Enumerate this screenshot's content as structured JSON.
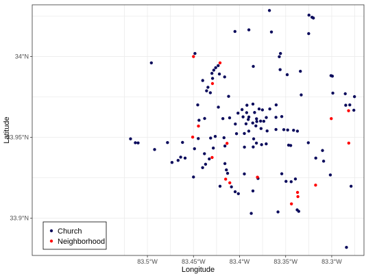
{
  "chart_data": {
    "type": "scatter",
    "xlabel": "Longitude",
    "ylabel": "Latitude",
    "xlim": [
      -83.625,
      -83.265
    ],
    "ylim": [
      33.877,
      34.032
    ],
    "x_ticks": [
      {
        "value": -83.5,
        "label": "83.5°W"
      },
      {
        "value": -83.45,
        "label": "83.45°W"
      },
      {
        "value": -83.4,
        "label": "83.4°W"
      },
      {
        "value": -83.35,
        "label": "83.35°W"
      },
      {
        "value": -83.3,
        "label": "83.3°W"
      }
    ],
    "y_ticks": [
      {
        "value": 33.9,
        "label": "33.9°N"
      },
      {
        "value": 33.95,
        "label": "33.95°N"
      },
      {
        "value": 34.0,
        "label": "34°N"
      }
    ],
    "grid": true,
    "legend_position": "bottom-left",
    "series": [
      {
        "name": "Church",
        "color": "#0b0b5c",
        "points": [
          [
            -83.3676,
            34.0285
          ],
          [
            -83.3247,
            34.0256
          ],
          [
            -83.3214,
            34.0243
          ],
          [
            -83.3199,
            34.0238
          ],
          [
            -83.3899,
            34.0165
          ],
          [
            -83.405,
            34.0155
          ],
          [
            -83.3654,
            34.0152
          ],
          [
            -83.325,
            34.0142
          ],
          [
            -83.4484,
            34.0019
          ],
          [
            -83.3556,
            34.0019
          ],
          [
            -83.3569,
            33.9999
          ],
          [
            -83.4957,
            33.9961
          ],
          [
            -83.4232,
            33.9944
          ],
          [
            -83.3851,
            33.9939
          ],
          [
            -83.4259,
            33.9931
          ],
          [
            -83.356,
            33.9919
          ],
          [
            -83.428,
            33.9916
          ],
          [
            -83.334,
            33.9909
          ],
          [
            -83.43,
            33.9896
          ],
          [
            -83.4219,
            33.9892
          ],
          [
            -83.3483,
            33.9888
          ],
          [
            -83.3008,
            33.9882
          ],
          [
            -83.2993,
            33.9879
          ],
          [
            -83.4162,
            33.9874
          ],
          [
            -83.4293,
            33.9865
          ],
          [
            -83.44,
            33.9852
          ],
          [
            -83.4343,
            33.981
          ],
          [
            -83.4358,
            33.9788
          ],
          [
            -83.4317,
            33.9776
          ],
          [
            -83.2988,
            33.9774
          ],
          [
            -83.3331,
            33.9763
          ],
          [
            -83.2853,
            33.977
          ],
          [
            -83.2753,
            33.9752
          ],
          [
            -83.4119,
            33.9754
          ],
          [
            -83.3855,
            33.9706
          ],
          [
            -83.4454,
            33.9701
          ],
          [
            -83.423,
            33.9687
          ],
          [
            -83.392,
            33.9699
          ],
          [
            -83.3603,
            33.9701
          ],
          [
            -83.2848,
            33.9699
          ],
          [
            -83.2804,
            33.9701
          ],
          [
            -83.276,
            33.9668
          ],
          [
            -83.3973,
            33.9672
          ],
          [
            -83.3788,
            33.9676
          ],
          [
            -83.3752,
            33.967
          ],
          [
            -83.3672,
            33.9676
          ],
          [
            -83.3837,
            33.9654
          ],
          [
            -83.3923,
            33.9653
          ],
          [
            -83.4017,
            33.965
          ],
          [
            -83.3899,
            33.9626
          ],
          [
            -83.3962,
            33.9627
          ],
          [
            -83.3906,
            33.9611
          ],
          [
            -83.3816,
            33.9615
          ],
          [
            -83.371,
            33.9623
          ],
          [
            -83.3605,
            33.9624
          ],
          [
            -83.3542,
            33.9629
          ],
          [
            -83.3813,
            33.9598
          ],
          [
            -83.3772,
            33.9601
          ],
          [
            -83.3737,
            33.96
          ],
          [
            -83.3857,
            33.9589
          ],
          [
            -83.393,
            33.9584
          ],
          [
            -83.4046,
            33.9583
          ],
          [
            -83.4108,
            33.9621
          ],
          [
            -83.4181,
            33.9616
          ],
          [
            -83.4379,
            33.9617
          ],
          [
            -83.444,
            33.9606
          ],
          [
            -83.3823,
            33.9571
          ],
          [
            -83.3767,
            33.9555
          ],
          [
            -83.3701,
            33.954
          ],
          [
            -83.3605,
            33.9549
          ],
          [
            -83.352,
            33.9548
          ],
          [
            -83.3478,
            33.9546
          ],
          [
            -83.3414,
            33.9544
          ],
          [
            -83.3372,
            33.9539
          ],
          [
            -83.39,
            33.9539
          ],
          [
            -83.3948,
            33.9524
          ],
          [
            -83.4033,
            33.9523
          ],
          [
            -83.3847,
            33.9491
          ],
          [
            -83.4169,
            33.9498
          ],
          [
            -83.4264,
            33.9506
          ],
          [
            -83.4314,
            33.9496
          ],
          [
            -83.4448,
            33.9493
          ],
          [
            -83.5183,
            33.9491
          ],
          [
            -83.5131,
            33.9467
          ],
          [
            -83.5101,
            33.9466
          ],
          [
            -83.4782,
            33.9468
          ],
          [
            -83.4619,
            33.9469
          ],
          [
            -83.4922,
            33.9425
          ],
          [
            -83.4489,
            33.943
          ],
          [
            -83.4381,
            33.9399
          ],
          [
            -83.4285,
            33.9434
          ],
          [
            -83.4159,
            33.9447
          ],
          [
            -83.3947,
            33.944
          ],
          [
            -83.3852,
            33.9441
          ],
          [
            -83.3817,
            33.9465
          ],
          [
            -83.3761,
            33.9455
          ],
          [
            -83.3711,
            33.946
          ],
          [
            -83.3468,
            33.9452
          ],
          [
            -83.3445,
            33.945
          ],
          [
            -83.3254,
            33.9467
          ],
          [
            -83.31,
            33.9419
          ],
          [
            -83.3173,
            33.9372
          ],
          [
            -83.3088,
            33.9353
          ],
          [
            -83.4639,
            33.9378
          ],
          [
            -83.4667,
            33.9358
          ],
          [
            -83.4733,
            33.9345
          ],
          [
            -83.4591,
            33.9372
          ],
          [
            -83.4329,
            33.9367
          ],
          [
            -83.4369,
            33.9334
          ],
          [
            -83.4401,
            33.9313
          ],
          [
            -83.4159,
            33.9338
          ],
          [
            -83.413,
            33.9278
          ],
          [
            -83.4143,
            33.9299
          ],
          [
            -83.45,
            33.9255
          ],
          [
            -83.3948,
            33.9274
          ],
          [
            -83.38,
            33.9246
          ],
          [
            -83.3542,
            33.9275
          ],
          [
            -83.3496,
            33.9228
          ],
          [
            -83.344,
            33.9226
          ],
          [
            -83.3394,
            33.9243
          ],
          [
            -83.3015,
            33.9268
          ],
          [
            -83.4212,
            33.9198
          ],
          [
            -83.4088,
            33.9194
          ],
          [
            -83.4048,
            33.9164
          ],
          [
            -83.4013,
            33.9152
          ],
          [
            -83.3855,
            33.9169
          ],
          [
            -83.279,
            33.9198
          ],
          [
            -83.3583,
            33.9039
          ],
          [
            -83.3873,
            33.903
          ],
          [
            -83.3375,
            33.9052
          ],
          [
            -83.3358,
            33.9043
          ],
          [
            -83.284,
            33.882
          ]
        ]
      },
      {
        "name": "Neighborhood",
        "color": "#ff0000",
        "points": [
          [
            -83.45,
            34.0
          ],
          [
            -83.4212,
            33.9961
          ],
          [
            -83.4294,
            33.9833
          ],
          [
            -83.3005,
            33.9616
          ],
          [
            -83.4446,
            33.957
          ],
          [
            -83.2817,
            33.9665
          ],
          [
            -83.4509,
            33.9502
          ],
          [
            -83.4136,
            33.9463
          ],
          [
            -83.2815,
            33.9465
          ],
          [
            -83.4298,
            33.9376
          ],
          [
            -83.3806,
            33.9254
          ],
          [
            -83.4151,
            33.9242
          ],
          [
            -83.4106,
            33.9219
          ],
          [
            -83.3175,
            33.9205
          ],
          [
            -83.3371,
            33.916
          ],
          [
            -83.3367,
            33.9134
          ],
          [
            -83.3437,
            33.9089
          ]
        ]
      }
    ]
  }
}
